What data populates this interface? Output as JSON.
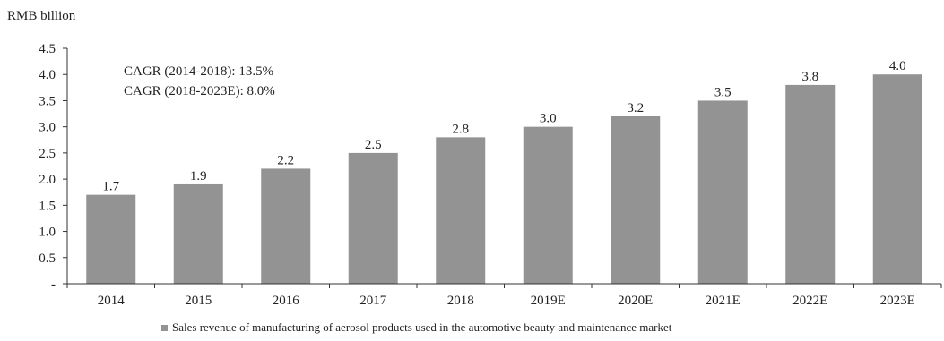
{
  "chart_data": {
    "type": "bar",
    "unit_label": "RMB billion",
    "categories": [
      "2014",
      "2015",
      "2016",
      "2017",
      "2018",
      "2019E",
      "2020E",
      "2021E",
      "2022E",
      "2023E"
    ],
    "series": [
      {
        "name": "Sales revenue of manufacturing of aerosol products used in the automotive beauty and maintenance market",
        "values": [
          1.7,
          1.9,
          2.2,
          2.5,
          2.8,
          3.0,
          3.2,
          3.5,
          3.8,
          4.0
        ],
        "color": "#939393"
      }
    ],
    "data_labels": [
      "1.7",
      "1.9",
      "2.2",
      "2.5",
      "2.8",
      "3.0",
      "3.2",
      "3.5",
      "3.8",
      "4.0"
    ],
    "y_ticks": [
      0,
      0.5,
      1.0,
      1.5,
      2.0,
      2.5,
      3.0,
      3.5,
      4.0,
      4.5
    ],
    "y_tick_labels": [
      "-",
      "0.5",
      "1.0",
      "1.5",
      "2.0",
      "2.5",
      "3.0",
      "3.5",
      "4.0",
      "4.5"
    ],
    "ylim": [
      0,
      4.5
    ],
    "grid": false,
    "legend_position": "bottom-center",
    "annotations": [
      "CAGR (2014-2018): 13.5%",
      "CAGR (2018-2023E): 8.0%"
    ]
  }
}
